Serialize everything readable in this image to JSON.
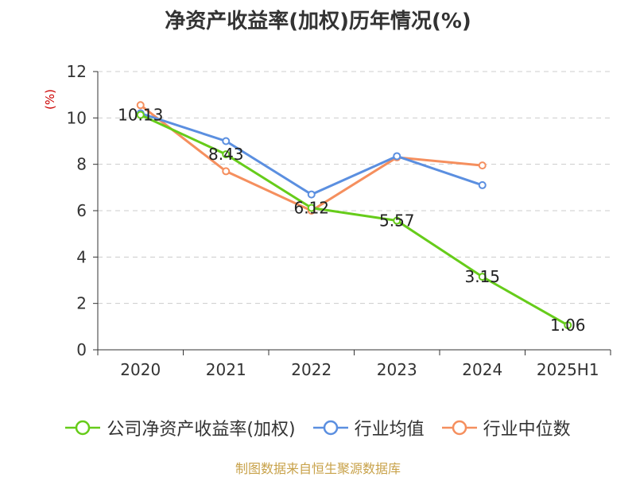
{
  "title": "净资产收益率(加权)历年情况(%)",
  "source": "制图数据来自恒生聚源数据库",
  "colors": {
    "company": "#66cc1a",
    "industry_avg": "#5b8fe0",
    "industry_median": "#f58f5e",
    "ylabel": "#cc0000"
  },
  "chart_data": {
    "type": "line",
    "categories": [
      "2020",
      "2021",
      "2022",
      "2023",
      "2024",
      "2025H1"
    ],
    "ylabel": "(%)",
    "ylim": [
      0,
      12
    ],
    "yticks": [
      0,
      2,
      4,
      6,
      8,
      10,
      12
    ],
    "grid": true,
    "legend_position": "bottom",
    "series": [
      {
        "name": "公司净资产收益率(加权)",
        "key": "company",
        "values": [
          10.13,
          8.43,
          6.12,
          5.57,
          3.15,
          1.06
        ],
        "labels": [
          "10.13",
          "8.43",
          "6.12",
          "5.57",
          "3.15",
          "1.06"
        ]
      },
      {
        "name": "行业均值",
        "key": "industry_avg",
        "values": [
          10.2,
          9.0,
          6.7,
          8.35,
          7.1,
          null
        ]
      },
      {
        "name": "行业中位数",
        "key": "industry_median",
        "values": [
          10.55,
          7.7,
          6.0,
          8.3,
          7.95,
          null
        ]
      }
    ]
  }
}
